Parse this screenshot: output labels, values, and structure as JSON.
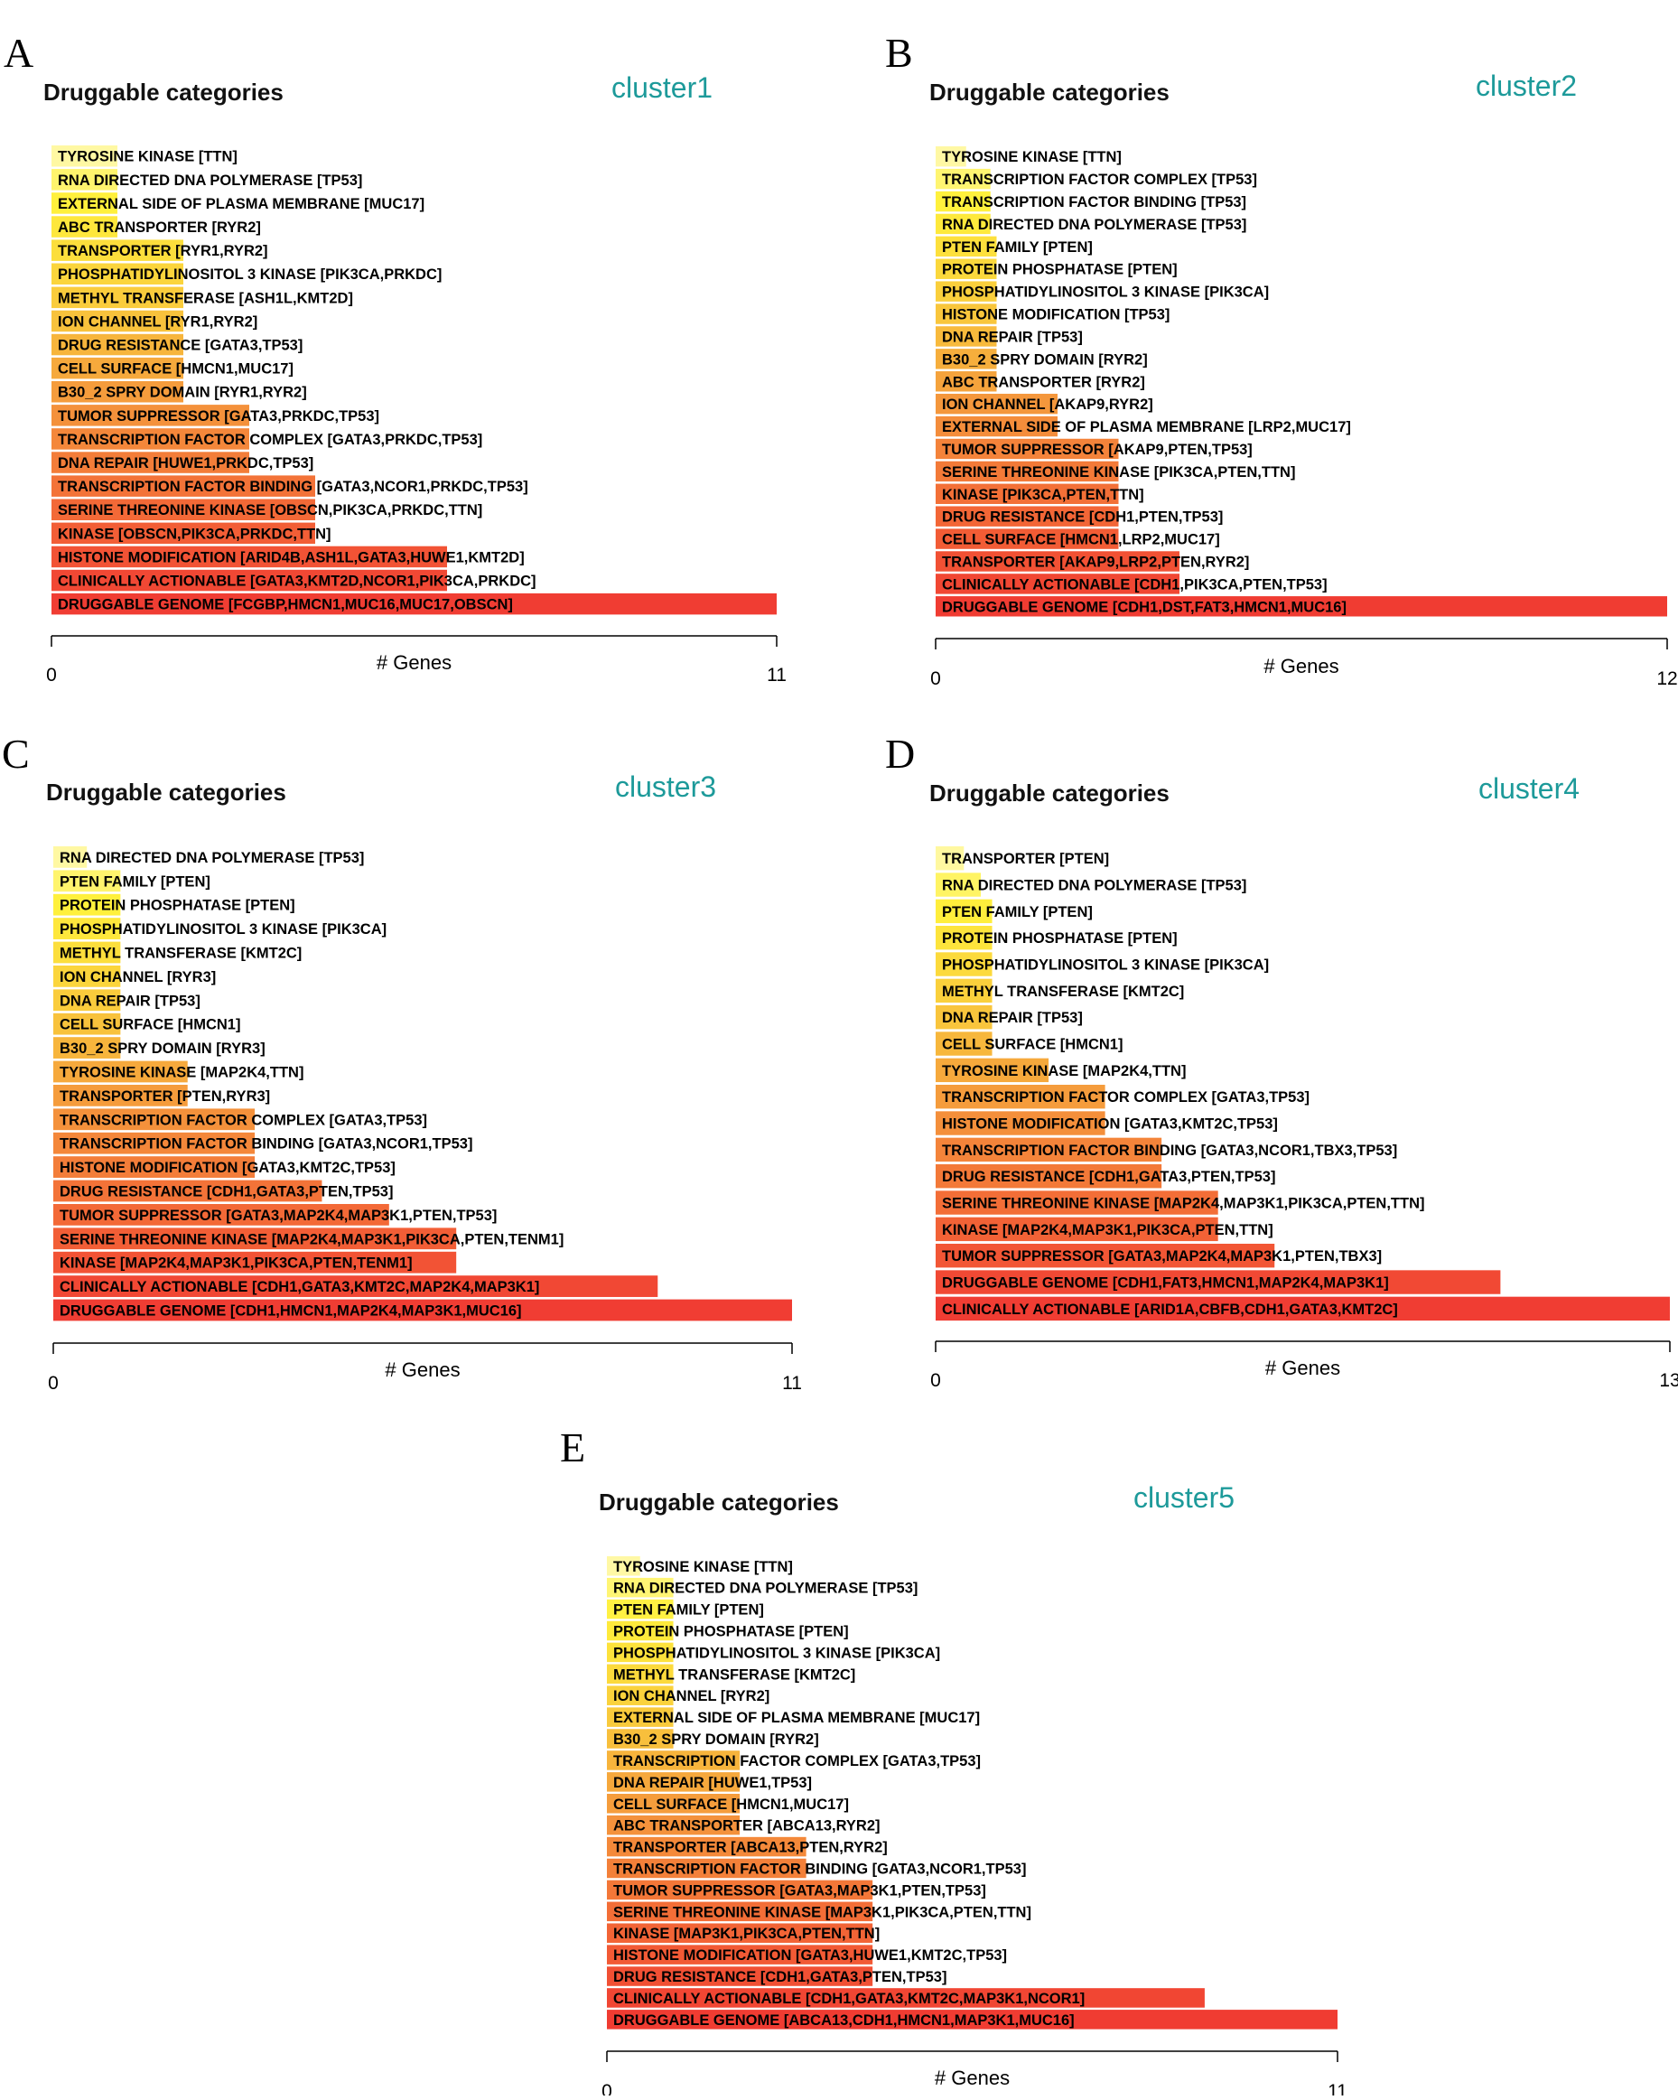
{
  "chart_data": [
    {
      "type": "bar",
      "panel": "A",
      "title": "Druggable categories",
      "cluster": "cluster1",
      "xlabel": "# Genes",
      "xlim": [
        0,
        11
      ],
      "xticks": [
        "0",
        "11"
      ],
      "categories": [
        "TYROSINE KINASE [TTN]",
        "RNA DIRECTED DNA POLYMERASE [TP53]",
        "EXTERNAL SIDE OF PLASMA MEMBRANE [MUC17]",
        "ABC TRANSPORTER [RYR2]",
        "TRANSPORTER [RYR1,RYR2]",
        "PHOSPHATIDYLINOSITOL 3 KINASE [PIK3CA,PRKDC]",
        "METHYL TRANSFERASE [ASH1L,KMT2D]",
        "ION CHANNEL [RYR1,RYR2]",
        "DRUG RESISTANCE [GATA3,TP53]",
        "CELL SURFACE [HMCN1,MUC17]",
        "B30_2 SPRY DOMAIN [RYR1,RYR2]",
        "TUMOR SUPPRESSOR [GATA3,PRKDC,TP53]",
        "TRANSCRIPTION FACTOR COMPLEX [GATA3,PRKDC,TP53]",
        "DNA REPAIR [HUWE1,PRKDC,TP53]",
        "TRANSCRIPTION FACTOR BINDING [GATA3,NCOR1,PRKDC,TP53]",
        "SERINE THREONINE KINASE [OBSCN,PIK3CA,PRKDC,TTN]",
        "KINASE [OBSCN,PIK3CA,PRKDC,TTN]",
        "HISTONE MODIFICATION [ARID4B,ASH1L,GATA3,HUWE1,KMT2D]",
        "CLINICALLY ACTIONABLE [GATA3,KMT2D,NCOR1,PIK3CA,PRKDC]",
        "DRUGGABLE GENOME [FCGBP,HMCN1,MUC16,MUC17,OBSCN]"
      ],
      "values": [
        1,
        1,
        1,
        1,
        2,
        2,
        2,
        2,
        2,
        2,
        2,
        3,
        3,
        3,
        4,
        4,
        4,
        6,
        6,
        11
      ]
    },
    {
      "type": "bar",
      "panel": "B",
      "title": "Druggable categories",
      "cluster": "cluster2",
      "xlabel": "# Genes",
      "xlim": [
        0,
        12
      ],
      "xticks": [
        "0",
        "12"
      ],
      "categories": [
        "TYROSINE KINASE [TTN]",
        "TRANSCRIPTION FACTOR COMPLEX [TP53]",
        "TRANSCRIPTION FACTOR BINDING [TP53]",
        "RNA DIRECTED DNA POLYMERASE [TP53]",
        "PTEN FAMILY [PTEN]",
        "PROTEIN PHOSPHATASE [PTEN]",
        "PHOSPHATIDYLINOSITOL 3 KINASE [PIK3CA]",
        "HISTONE MODIFICATION [TP53]",
        "DNA REPAIR [TP53]",
        "B30_2 SPRY DOMAIN [RYR2]",
        "ABC TRANSPORTER [RYR2]",
        "ION CHANNEL [AKAP9,RYR2]",
        "EXTERNAL SIDE OF PLASMA MEMBRANE [LRP2,MUC17]",
        "TUMOR SUPPRESSOR [AKAP9,PTEN,TP53]",
        "SERINE THREONINE KINASE [PIK3CA,PTEN,TTN]",
        "KINASE [PIK3CA,PTEN,TTN]",
        "DRUG RESISTANCE [CDH1,PTEN,TP53]",
        "CELL SURFACE [HMCN1,LRP2,MUC17]",
        "TRANSPORTER [AKAP9,LRP2,PTEN,RYR2]",
        "CLINICALLY ACTIONABLE [CDH1,PIK3CA,PTEN,TP53]",
        "DRUGGABLE GENOME [CDH1,DST,FAT3,HMCN1,MUC16]"
      ],
      "values": [
        0.5,
        0.9,
        0.9,
        0.9,
        1,
        1,
        1,
        1,
        1,
        1,
        1,
        2,
        2,
        3,
        3,
        3,
        3,
        3,
        4,
        4,
        12
      ]
    },
    {
      "type": "bar",
      "panel": "C",
      "title": "Druggable categories",
      "cluster": "cluster3",
      "xlabel": "# Genes",
      "xlim": [
        0,
        11
      ],
      "xticks": [
        "0",
        "11"
      ],
      "categories": [
        "RNA DIRECTED DNA POLYMERASE [TP53]",
        "PTEN FAMILY [PTEN]",
        "PROTEIN PHOSPHATASE [PTEN]",
        "PHOSPHATIDYLINOSITOL 3 KINASE [PIK3CA]",
        "METHYL TRANSFERASE [KMT2C]",
        "ION CHANNEL [RYR3]",
        "DNA REPAIR [TP53]",
        "CELL SURFACE [HMCN1]",
        "B30_2 SPRY DOMAIN [RYR3]",
        "TYROSINE KINASE [MAP2K4,TTN]",
        "TRANSPORTER [PTEN,RYR3]",
        "TRANSCRIPTION FACTOR COMPLEX [GATA3,TP53]",
        "TRANSCRIPTION FACTOR BINDING [GATA3,NCOR1,TP53]",
        "HISTONE MODIFICATION [GATA3,KMT2C,TP53]",
        "DRUG RESISTANCE [CDH1,GATA3,PTEN,TP53]",
        "TUMOR SUPPRESSOR [GATA3,MAP2K4,MAP3K1,PTEN,TP53]",
        "SERINE THREONINE KINASE [MAP2K4,MAP3K1,PIK3CA,PTEN,TENM1]",
        "KINASE [MAP2K4,MAP3K1,PIK3CA,PTEN,TENM1]",
        "CLINICALLY ACTIONABLE [CDH1,GATA3,KMT2C,MAP2K4,MAP3K1]",
        "DRUGGABLE GENOME [CDH1,HMCN1,MAP2K4,MAP3K1,MUC16]"
      ],
      "values": [
        0.5,
        1,
        1,
        1,
        1,
        1,
        1,
        1,
        1,
        2,
        2,
        3,
        3,
        3,
        4,
        5,
        6,
        6,
        9,
        11
      ]
    },
    {
      "type": "bar",
      "panel": "D",
      "title": "Druggable categories",
      "cluster": "cluster4",
      "xlabel": "# Genes",
      "xlim": [
        0,
        13
      ],
      "xticks": [
        "0",
        "13"
      ],
      "categories": [
        "TRANSPORTER [PTEN]",
        "RNA DIRECTED DNA POLYMERASE [TP53]",
        "PTEN FAMILY [PTEN]",
        "PROTEIN PHOSPHATASE [PTEN]",
        "PHOSPHATIDYLINOSITOL 3 KINASE [PIK3CA]",
        "METHYL TRANSFERASE [KMT2C]",
        "DNA REPAIR [TP53]",
        "CELL SURFACE [HMCN1]",
        "TYROSINE KINASE [MAP2K4,TTN]",
        "TRANSCRIPTION FACTOR COMPLEX [GATA3,TP53]",
        "HISTONE MODIFICATION [GATA3,KMT2C,TP53]",
        "TRANSCRIPTION FACTOR BINDING [GATA3,NCOR1,TBX3,TP53]",
        "DRUG RESISTANCE [CDH1,GATA3,PTEN,TP53]",
        "SERINE THREONINE KINASE [MAP2K4,MAP3K1,PIK3CA,PTEN,TTN]",
        "KINASE [MAP2K4,MAP3K1,PIK3CA,PTEN,TTN]",
        "TUMOR SUPPRESSOR [GATA3,MAP2K4,MAP3K1,PTEN,TBX3]",
        "DRUGGABLE GENOME [CDH1,FAT3,HMCN1,MAP2K4,MAP3K1]",
        "CLINICALLY ACTIONABLE [ARID1A,CBFB,CDH1,GATA3,KMT2C]"
      ],
      "values": [
        0.5,
        0.8,
        1,
        1,
        1,
        1,
        1,
        1,
        2,
        3,
        3,
        4,
        4,
        5,
        5,
        6,
        10,
        13
      ]
    },
    {
      "type": "bar",
      "panel": "E",
      "title": "Druggable categories",
      "cluster": "cluster5",
      "xlabel": "# Genes",
      "xlim": [
        0,
        11
      ],
      "xticks": [
        "0",
        "11"
      ],
      "categories": [
        "TYROSINE KINASE [TTN]",
        "RNA DIRECTED DNA POLYMERASE [TP53]",
        "PTEN FAMILY [PTEN]",
        "PROTEIN PHOSPHATASE [PTEN]",
        "PHOSPHATIDYLINOSITOL 3 KINASE [PIK3CA]",
        "METHYL TRANSFERASE [KMT2C]",
        "ION CHANNEL [RYR2]",
        "EXTERNAL SIDE OF PLASMA MEMBRANE [MUC17]",
        "B30_2 SPRY DOMAIN [RYR2]",
        "TRANSCRIPTION FACTOR COMPLEX [GATA3,TP53]",
        "DNA REPAIR [HUWE1,TP53]",
        "CELL SURFACE [HMCN1,MUC17]",
        "ABC TRANSPORTER [ABCA13,RYR2]",
        "TRANSPORTER [ABCA13,PTEN,RYR2]",
        "TRANSCRIPTION FACTOR BINDING [GATA3,NCOR1,TP53]",
        "TUMOR SUPPRESSOR [GATA3,MAP3K1,PTEN,TP53]",
        "SERINE THREONINE KINASE [MAP3K1,PIK3CA,PTEN,TTN]",
        "KINASE [MAP3K1,PIK3CA,PTEN,TTN]",
        "HISTONE MODIFICATION [GATA3,HUWE1,KMT2C,TP53]",
        "DRUG RESISTANCE [CDH1,GATA3,PTEN,TP53]",
        "CLINICALLY ACTIONABLE [CDH1,GATA3,KMT2C,MAP3K1,NCOR1]",
        "DRUGGABLE GENOME [ABCA13,CDH1,HMCN1,MAP3K1,MUC16]"
      ],
      "values": [
        0.5,
        1,
        1,
        1,
        1,
        1,
        1,
        1,
        1,
        2,
        2,
        2,
        2,
        3,
        3,
        4,
        4,
        4,
        4,
        4,
        9,
        11
      ]
    }
  ]
}
